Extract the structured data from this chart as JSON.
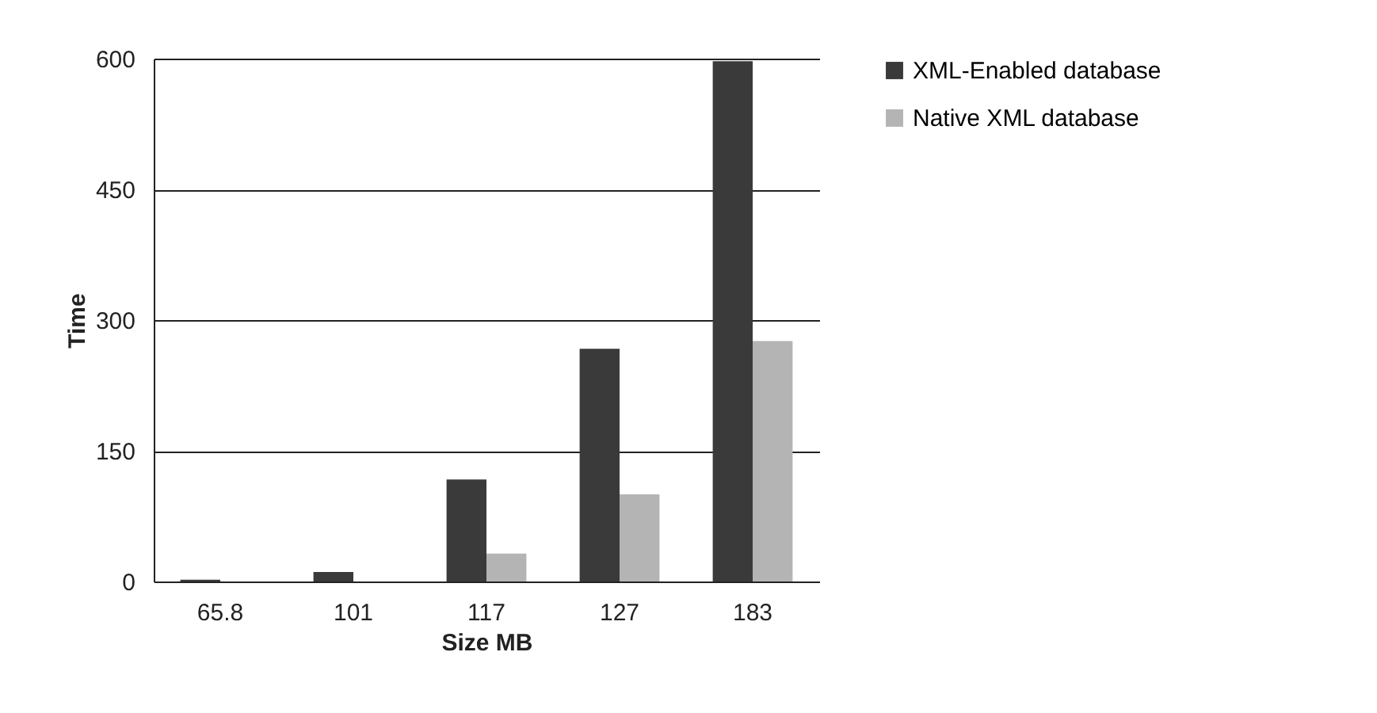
{
  "chart_data": {
    "type": "bar",
    "xlabel": "Size MB",
    "ylabel": "Time",
    "categories": [
      "65.8",
      "101",
      "117",
      "127",
      "183"
    ],
    "series": [
      {
        "name": "XML-Enabled database",
        "color": "#3a3a3a",
        "values": [
          2,
          11,
          117,
          267,
          597
        ]
      },
      {
        "name": "Native XML database",
        "color": "#b4b4b4",
        "values": [
          null,
          null,
          32,
          100,
          276
        ]
      }
    ],
    "ylim": [
      0,
      600
    ],
    "yticks": [
      0,
      150,
      300,
      450,
      600
    ],
    "grid": "y",
    "legend": "right"
  }
}
